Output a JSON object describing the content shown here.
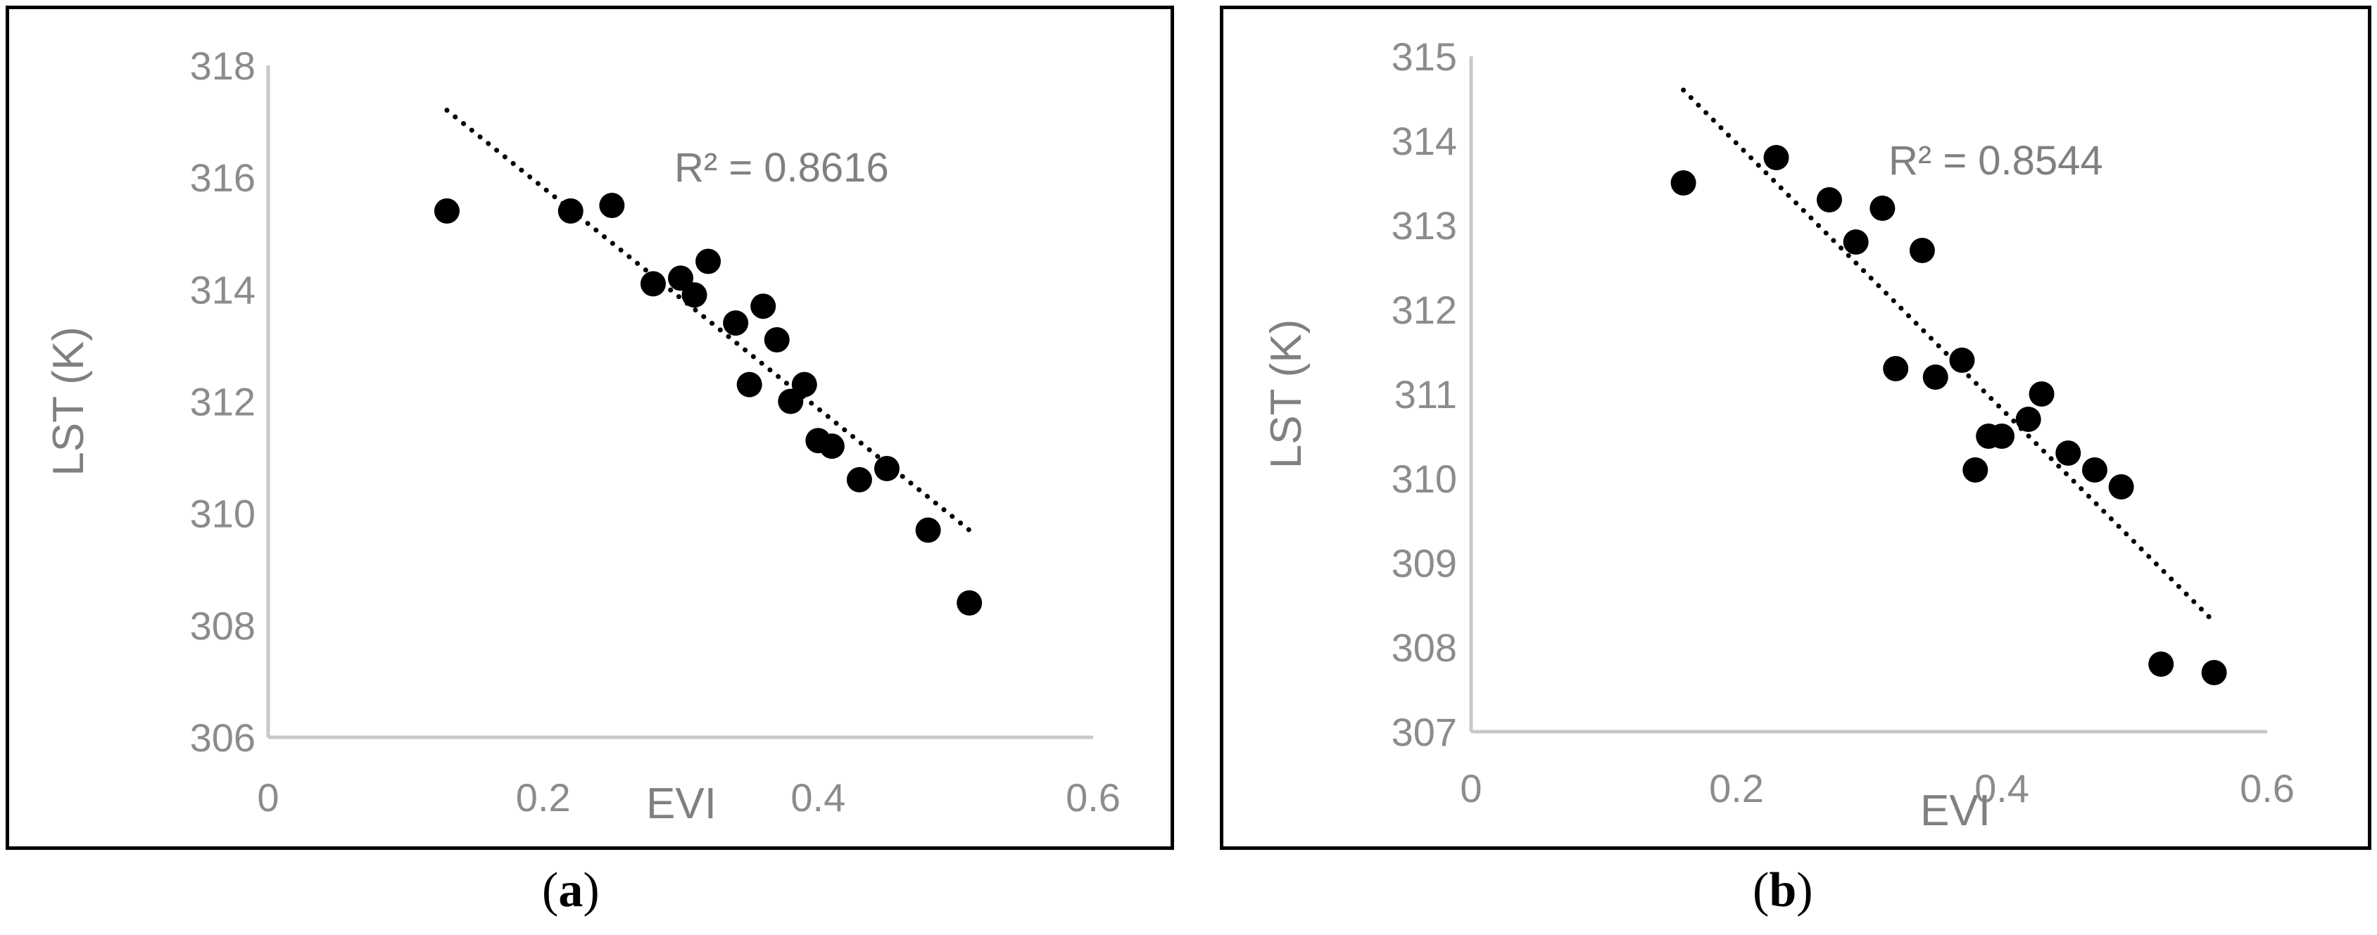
{
  "chart_data": [
    {
      "id": "a",
      "type": "scatter",
      "caption_letter": "a",
      "xlabel": "EVI",
      "ylabel": "LST (K)",
      "xlim": [
        0,
        0.6
      ],
      "ylim": [
        306,
        318
      ],
      "xticks": [
        0,
        0.2,
        0.4,
        0.6
      ],
      "yticks": [
        306,
        308,
        310,
        312,
        314,
        316,
        318
      ],
      "annotation": "R² = 0.8616",
      "trendline": {
        "x": [
          0.13,
          0.51
        ],
        "y": [
          317.2,
          309.7
        ],
        "style": "dotted"
      },
      "points": {
        "x": [
          0.13,
          0.22,
          0.25,
          0.28,
          0.3,
          0.31,
          0.32,
          0.34,
          0.35,
          0.36,
          0.37,
          0.38,
          0.39,
          0.4,
          0.41,
          0.43,
          0.45,
          0.48,
          0.51
        ],
        "y": [
          315.4,
          315.4,
          315.5,
          314.1,
          314.2,
          313.9,
          314.5,
          313.4,
          312.3,
          313.7,
          313.1,
          312.0,
          312.3,
          311.3,
          311.2,
          310.6,
          310.8,
          309.7,
          308.4
        ]
      }
    },
    {
      "id": "b",
      "type": "scatter",
      "caption_letter": "b",
      "xlabel": "EVI",
      "ylabel": "LST (K)",
      "xlim": [
        0,
        0.6
      ],
      "ylim": [
        307,
        315
      ],
      "xticks": [
        0,
        0.2,
        0.4,
        0.6
      ],
      "yticks": [
        307,
        308,
        309,
        310,
        311,
        312,
        313,
        314,
        315
      ],
      "annotation": "R² = 0.8544",
      "trendline": {
        "x": [
          0.16,
          0.56
        ],
        "y": [
          314.6,
          308.3
        ],
        "style": "dotted"
      },
      "points": {
        "x": [
          0.16,
          0.23,
          0.27,
          0.29,
          0.31,
          0.32,
          0.34,
          0.35,
          0.37,
          0.38,
          0.39,
          0.4,
          0.42,
          0.43,
          0.45,
          0.47,
          0.49,
          0.52,
          0.56
        ],
        "y": [
          313.5,
          313.8,
          313.3,
          312.8,
          313.2,
          311.3,
          312.7,
          311.2,
          311.4,
          310.1,
          310.5,
          310.5,
          310.7,
          311.0,
          310.3,
          310.1,
          309.9,
          307.8,
          307.7
        ]
      }
    }
  ]
}
